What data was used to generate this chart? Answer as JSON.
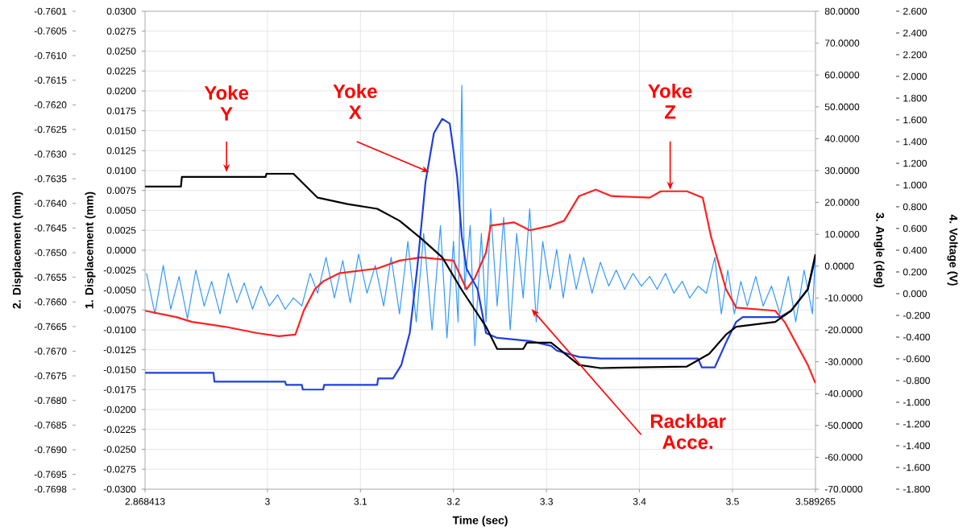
{
  "chart_data": {
    "type": "line",
    "xlabel": "Time (sec)",
    "ylabel": "1. Displacement (mm)",
    "y2label": "3. Angle (deg)",
    "y3label": "2. Displacement (mm)",
    "xlim": [
      2.868413,
      3.589265
    ],
    "xticks": [
      2.868413,
      3,
      3.1,
      3.2,
      3.3,
      3.4,
      3.5,
      3.589265
    ],
    "ylim": [
      -0.03,
      0.03
    ],
    "yticks": [
      {
        "value": -0.03,
        "label": "-0.0300"
      },
      -0.0275,
      {
        "value": -0.025,
        "label": "-0.0250"
      },
      -0.0225,
      {
        "value": -0.02,
        "label": "-0.0200"
      },
      -0.0175,
      {
        "value": -0.015,
        "label": "-0.0150"
      },
      -0.0125,
      {
        "value": -0.01,
        "label": "-0.0100"
      },
      -0.0075,
      {
        "value": -0.005,
        "label": "-0.0050"
      },
      -0.0025,
      {
        "value": 0,
        "label": "0.0000"
      },
      0.0025,
      {
        "value": 0.005,
        "label": "0.0050"
      },
      0.0075,
      {
        "value": 0.01,
        "label": "0.0100"
      },
      0.0125,
      {
        "value": 0.015,
        "label": "0.0150"
      },
      0.0175,
      {
        "value": 0.02,
        "label": "0.0200"
      },
      0.0225,
      {
        "value": 0.025,
        "label": "0.0250"
      },
      0.0275,
      {
        "value": 0.03,
        "label": "0.0300"
      }
    ],
    "y2lim": [
      -70,
      80
    ],
    "y2ticks": [
      {
        "value": -70,
        "label": "-70.0000"
      },
      {
        "value": -60,
        "label": "-60.0000"
      },
      {
        "value": -50,
        "label": "-50.0000"
      },
      {
        "value": -40,
        "label": "-40.0000"
      },
      {
        "value": -30,
        "label": "-30.0000"
      },
      {
        "value": -20,
        "label": "-20.0000"
      },
      {
        "value": -10,
        "label": "-10.0000"
      },
      {
        "value": 0,
        "label": "0.0000"
      },
      {
        "value": 10,
        "label": "10.0000"
      },
      {
        "value": 20,
        "label": "20.0000"
      },
      {
        "value": 30,
        "label": "30.0000"
      },
      {
        "value": 40,
        "label": "40.0000"
      },
      {
        "value": 50,
        "label": "50.0000"
      },
      {
        "value": 60,
        "label": "60.0000"
      },
      {
        "value": 70,
        "label": "70.0000"
      },
      {
        "value": 80,
        "label": "80.0000"
      }
    ],
    "y3lim": [
      -0.7698,
      -0.7601
    ],
    "y3ticks": [
      -0.7698,
      -0.7695,
      {
        "value": -0.769,
        "label": "-0.7690"
      },
      -0.7685,
      {
        "value": -0.768,
        "label": "-0.7680"
      },
      -0.7675,
      {
        "value": -0.767,
        "label": "-0.7670"
      },
      -0.7665,
      {
        "value": -0.766,
        "label": "-0.7660"
      },
      -0.7655,
      {
        "value": -0.765,
        "label": "-0.7650"
      },
      -0.7645,
      {
        "value": -0.764,
        "label": "-0.7640"
      },
      -0.7635,
      {
        "value": -0.763,
        "label": "-0.7630"
      },
      -0.7625,
      {
        "value": -0.762,
        "label": "-0.7620"
      },
      -0.7615,
      {
        "value": -0.761,
        "label": "-0.7610"
      },
      -0.7605,
      -0.7601
    ],
    "grid": true,
    "series": [
      {
        "color": "#3399ff",
        "x": [
          2.87,
          2.879,
          2.888,
          2.896,
          2.905,
          2.914,
          2.923,
          2.932,
          2.94,
          2.949,
          2.958,
          2.967,
          2.975,
          2.984,
          2.993,
          3.002,
          3.011,
          3.019,
          3.028,
          3.037,
          3.046,
          3.054,
          3.063,
          3.072,
          3.081,
          3.089,
          3.098,
          3.107,
          3.116,
          3.125,
          3.133,
          3.142,
          3.151,
          3.16,
          3.168,
          3.177,
          3.186,
          3.193,
          3.2,
          3.205,
          3.209,
          3.212,
          3.218,
          3.223,
          3.23,
          3.235,
          3.24,
          3.247,
          3.254,
          3.261,
          3.268,
          3.275,
          3.282,
          3.289,
          3.296,
          3.304,
          3.311,
          3.318,
          3.325,
          3.332,
          3.34,
          3.349,
          3.358,
          3.367,
          3.375,
          3.384,
          3.393,
          3.402,
          3.411,
          3.419,
          3.428,
          3.437,
          3.446,
          3.454,
          3.463,
          3.472,
          3.481,
          3.488,
          3.495,
          3.502,
          3.509,
          3.516,
          3.525,
          3.533,
          3.542,
          3.551,
          3.56,
          3.568,
          3.577,
          3.586,
          3.589
        ],
        "values": [
          -0.0029,
          -0.008,
          -0.0019,
          -0.0074,
          -0.0033,
          -0.0086,
          -0.0025,
          -0.007,
          -0.0039,
          -0.008,
          -0.0029,
          -0.0066,
          -0.0041,
          -0.0074,
          -0.0045,
          -0.007,
          -0.0056,
          -0.0074,
          -0.006,
          -0.007,
          -0.0029,
          -0.0054,
          -0.0009,
          -0.006,
          -0.0013,
          -0.0066,
          -0.0005,
          -0.0054,
          -0.0019,
          -0.007,
          -0.0009,
          -0.008,
          0.0011,
          -0.009,
          0.0021,
          -0.01,
          0.0031,
          -0.011,
          0.0011,
          -0.009,
          0.0207,
          -0.0049,
          0.0031,
          -0.012,
          0.0021,
          -0.009,
          0.0052,
          -0.007,
          0.0041,
          -0.01,
          0.0021,
          -0.006,
          0.0052,
          -0.009,
          0.0011,
          -0.0049,
          0.0001,
          -0.006,
          -0.0005,
          -0.0049,
          -0.0009,
          -0.0054,
          -0.0015,
          -0.0045,
          -0.0025,
          -0.0049,
          -0.0029,
          -0.0045,
          -0.0033,
          -0.0049,
          -0.0029,
          -0.0054,
          -0.0039,
          -0.006,
          -0.0045,
          -0.0054,
          -0.0009,
          -0.008,
          -0.0025,
          -0.008,
          -0.0039,
          -0.007,
          -0.0033,
          -0.007,
          -0.0045,
          -0.008,
          -0.0033,
          -0.009,
          -0.0025,
          -0.008,
          -0.0009
        ]
      },
      {
        "color": "#ff2020",
        "x": [
          2.8685,
          2.902,
          2.919,
          2.954,
          2.989,
          3.012,
          3.03,
          3.039,
          3.051,
          3.06,
          3.077,
          3.118,
          3.142,
          3.165,
          3.2,
          3.214,
          3.223,
          3.235,
          3.24,
          3.265,
          3.282,
          3.305,
          3.319,
          3.335,
          3.353,
          3.37,
          3.411,
          3.423,
          3.451,
          3.468,
          3.477,
          3.493,
          3.504,
          3.546,
          3.556,
          3.581,
          3.5892
        ],
        "values": [
          -0.0076,
          -0.0084,
          -0.009,
          -0.0096,
          -0.0104,
          -0.0108,
          -0.0106,
          -0.0076,
          -0.0049,
          -0.0039,
          -0.0029,
          -0.0023,
          -0.0013,
          -0.0009,
          -0.0013,
          -0.0049,
          -0.0035,
          -0.0003,
          0.0031,
          0.0035,
          0.0025,
          0.0031,
          0.0037,
          0.0068,
          0.0076,
          0.0068,
          0.0066,
          0.0074,
          0.0074,
          0.0066,
          0.0017,
          -0.0049,
          -0.0072,
          -0.0076,
          -0.009,
          -0.0144,
          -0.0167
        ]
      },
      {
        "color": "#1f3fe0",
        "x": [
          2.8685,
          2.942,
          2.943,
          3.019,
          3.02,
          3.037,
          3.038,
          3.06,
          3.061,
          3.118,
          3.119,
          3.135,
          3.144,
          3.153,
          3.161,
          3.17,
          3.179,
          3.188,
          3.196,
          3.204,
          3.209,
          3.214,
          3.226,
          3.235,
          3.247,
          3.282,
          3.305,
          3.311,
          3.335,
          3.358,
          3.463,
          3.467,
          3.481,
          3.493,
          3.504,
          3.511,
          3.551,
          3.563,
          3.581,
          3.5892
        ],
        "values": [
          -0.0154,
          -0.0154,
          -0.0165,
          -0.0165,
          -0.0169,
          -0.0169,
          -0.0175,
          -0.0175,
          -0.0169,
          -0.0169,
          -0.0161,
          -0.0161,
          -0.0144,
          -0.0104,
          -0.0023,
          0.0086,
          0.0147,
          0.0165,
          0.0159,
          0.0092,
          0.0017,
          -0.0023,
          -0.0049,
          -0.0104,
          -0.011,
          -0.0114,
          -0.012,
          -0.0126,
          -0.0134,
          -0.0136,
          -0.0136,
          -0.0147,
          -0.0147,
          -0.0116,
          -0.009,
          -0.0084,
          -0.0084,
          -0.0076,
          -0.0049,
          -0.001
        ]
      },
      {
        "color": "#000000",
        "x": [
          2.8685,
          2.907,
          2.908,
          2.998,
          2.999,
          3.028,
          3.054,
          3.086,
          3.118,
          3.142,
          3.165,
          3.188,
          3.209,
          3.235,
          3.247,
          3.275,
          3.279,
          3.305,
          3.335,
          3.358,
          3.451,
          3.475,
          3.493,
          3.504,
          3.546,
          3.563,
          3.581,
          3.5892
        ],
        "values": [
          0.008,
          0.008,
          0.0092,
          0.0092,
          0.0096,
          0.0096,
          0.0066,
          0.0058,
          0.0052,
          0.0037,
          0.0015,
          -0.0009,
          -0.005,
          -0.0096,
          -0.0124,
          -0.0124,
          -0.0116,
          -0.0116,
          -0.0144,
          -0.0148,
          -0.0146,
          -0.013,
          -0.0106,
          -0.0096,
          -0.009,
          -0.0076,
          -0.0049,
          -0.0005
        ]
      }
    ],
    "annotations": [
      {
        "text": "Yoke Y",
        "x": 2.956,
        "y": 0.0098
      },
      {
        "text": "Yoke X",
        "x": 3.174,
        "y": 0.0098
      },
      {
        "text": "Yoke Z",
        "x": 3.433,
        "y": 0.0076
      },
      {
        "text": "Rackbar Acce.",
        "x": 3.284,
        "y": -0.0074
      },
      "-1.800",
      "-1.600",
      "-1.400",
      "-1.200",
      "-1.000",
      "-0.800",
      "-0.600",
      "-0.400",
      "-0.200",
      "0.000",
      "0.200",
      "0.400",
      "0.600",
      "0.800",
      "1.000",
      "1.200",
      "1.400",
      "1.600",
      "1.800",
      "2.000",
      "2.200",
      "2.400",
      "2.600",
      "4. Voltage (V)"
    ]
  }
}
